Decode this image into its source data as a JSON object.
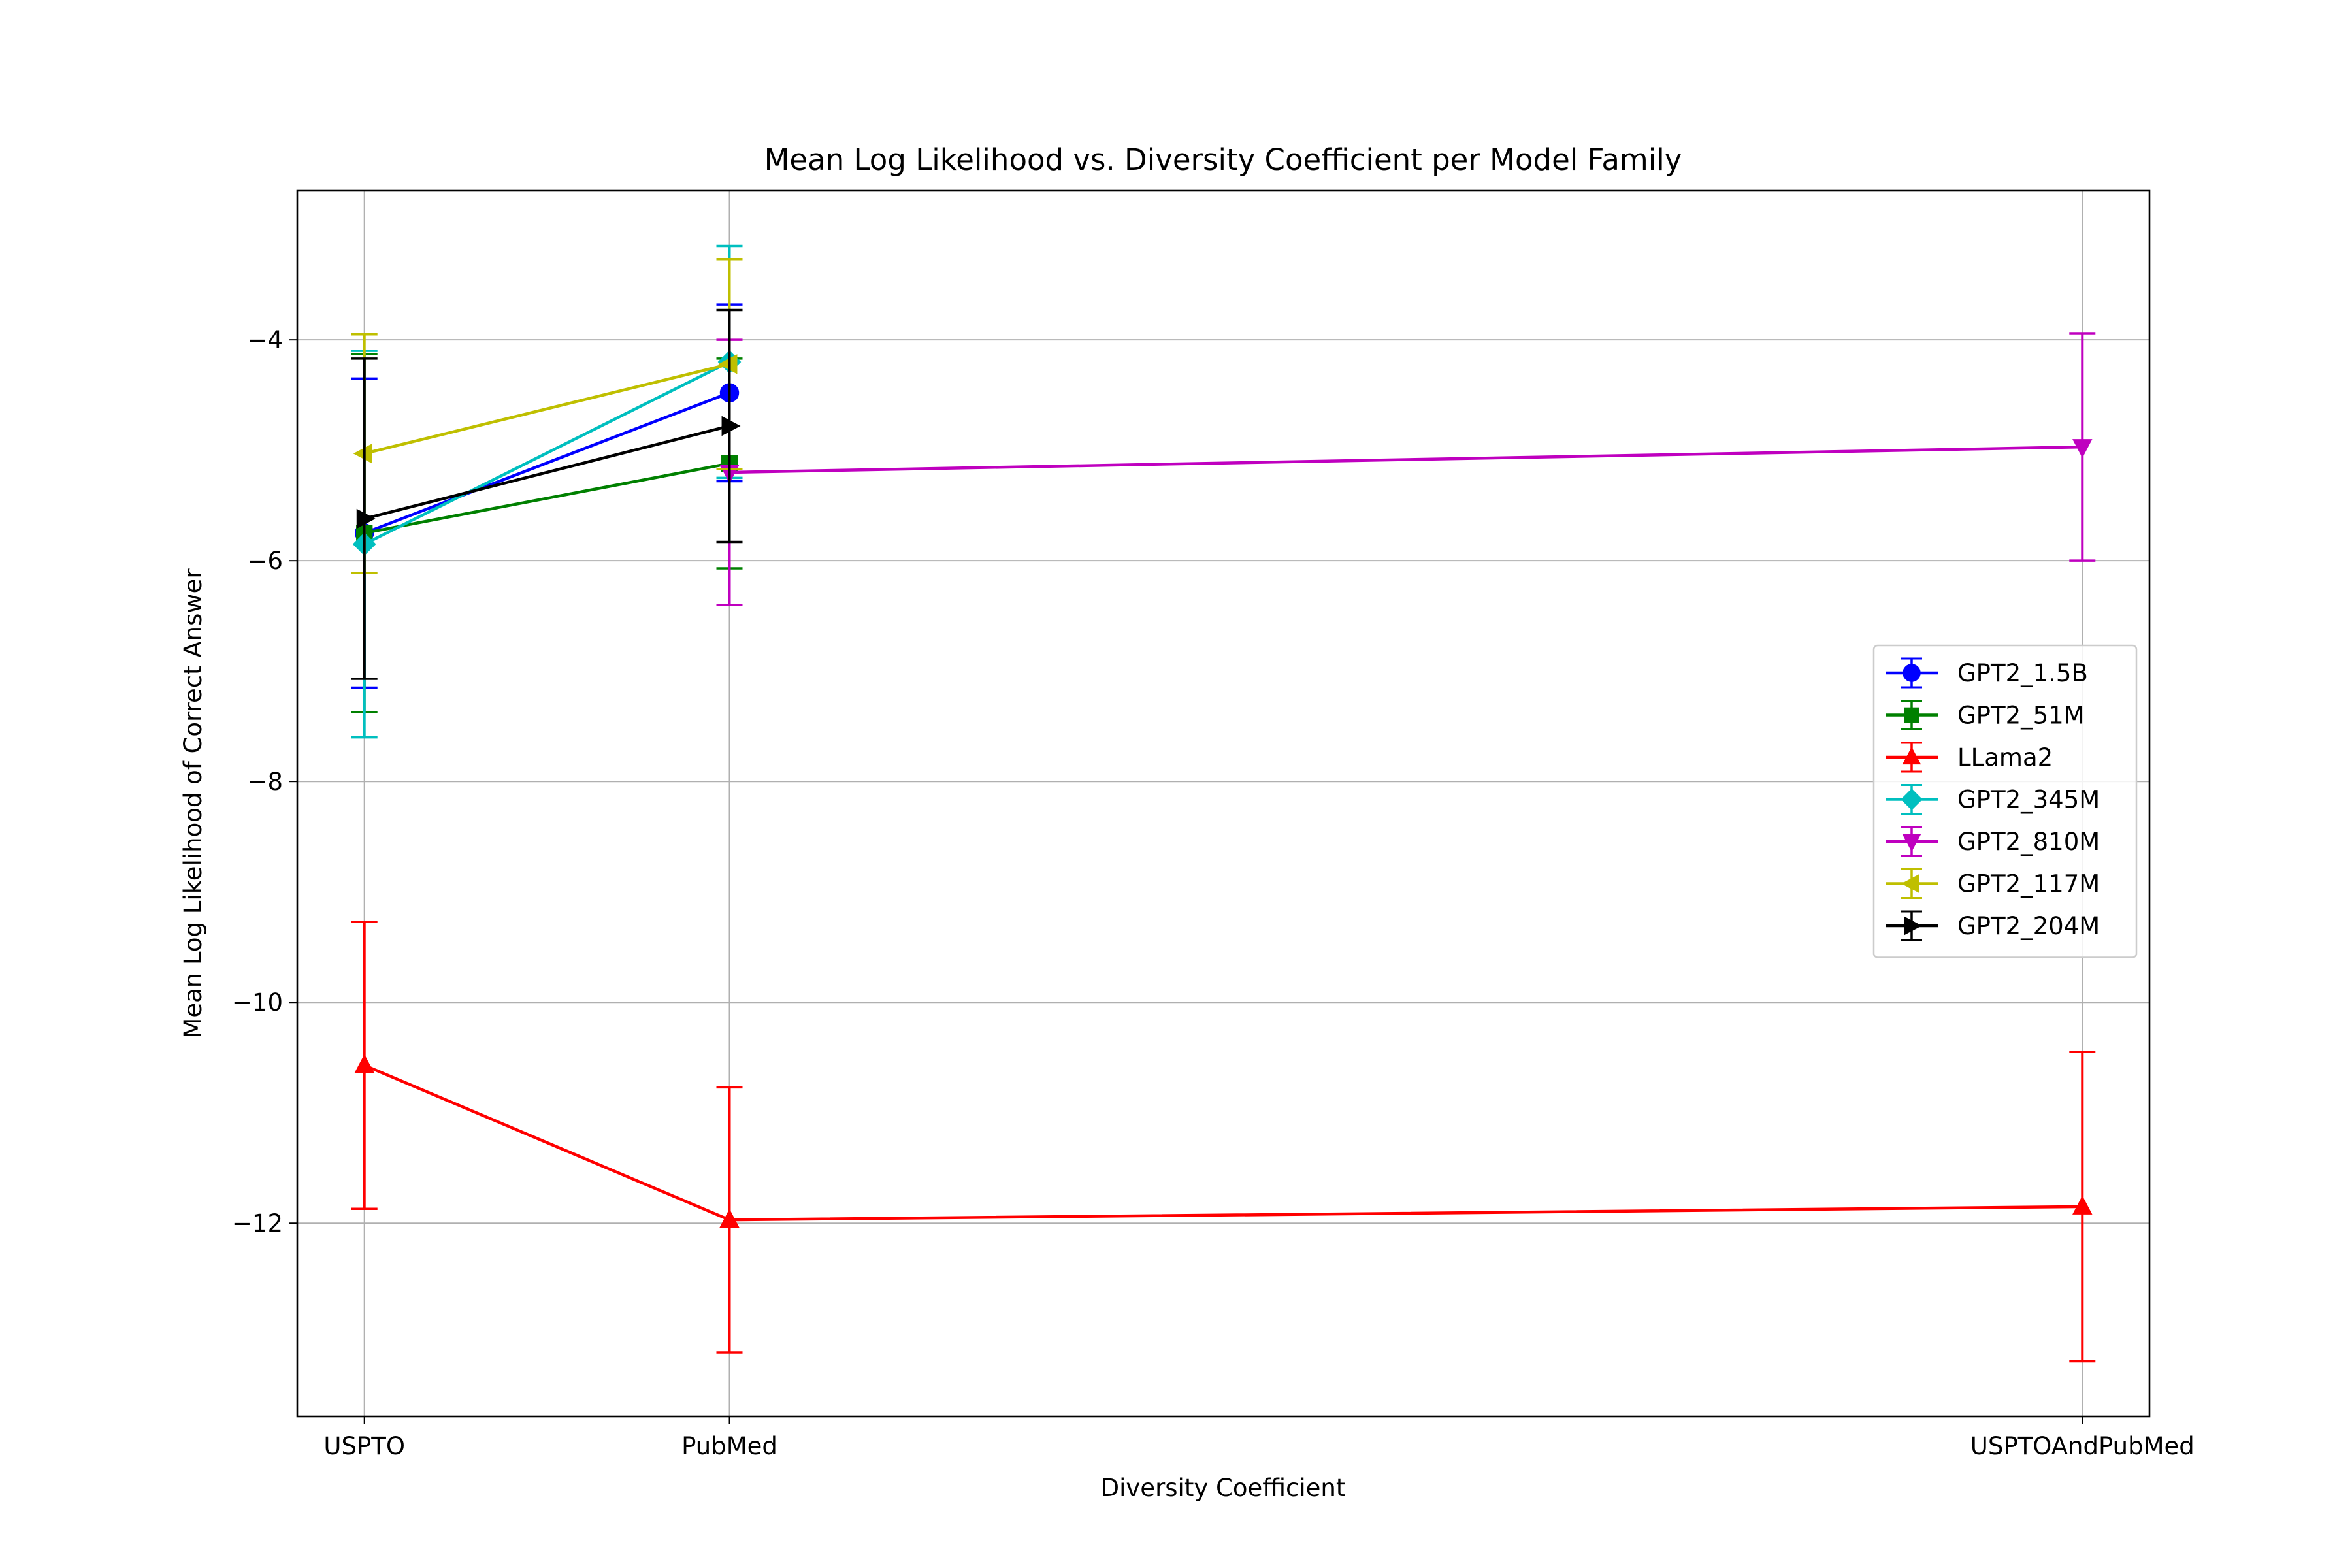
{
  "chart_data": {
    "type": "line",
    "title": "Mean Log Likelihood vs. Diversity Coefficient per Model Family",
    "xlabel": "Diversity Coefficient",
    "ylabel": "Mean Log Likelihood of Correct Answer",
    "categories": [
      "USPTO",
      "PubMed",
      "USPTOAndPubMed"
    ],
    "category_positions": [
      0.149,
      0.217,
      0.469
    ],
    "xlim": [
      0.1365,
      0.4815
    ],
    "ylim": [
      -13.75,
      -2.65
    ],
    "yticks": [
      -12,
      -10,
      -8,
      -6,
      -4
    ],
    "ytick_labels": [
      "−12",
      "−10",
      "−8",
      "−6",
      "−4"
    ],
    "grid": true,
    "legend_position": "center-right",
    "series": [
      {
        "name": "GPT2_1.5B",
        "color": "#0000ff",
        "marker": "circle",
        "points": [
          {
            "cat": 0,
            "y": -5.75,
            "err": 1.4
          },
          {
            "cat": 1,
            "y": -4.48,
            "err": 0.8
          }
        ]
      },
      {
        "name": "GPT2_51M",
        "color": "#008000",
        "marker": "square",
        "points": [
          {
            "cat": 0,
            "y": -5.75,
            "err": 1.62
          },
          {
            "cat": 1,
            "y": -5.12,
            "err": 0.95
          }
        ]
      },
      {
        "name": "LLama2",
        "color": "#ff0000",
        "marker": "triangle-up",
        "points": [
          {
            "cat": 0,
            "y": -10.57,
            "err": 1.3
          },
          {
            "cat": 1,
            "y": -11.97,
            "err": 1.2
          },
          {
            "cat": 2,
            "y": -11.85,
            "err": 1.4
          }
        ]
      },
      {
        "name": "GPT2_345M",
        "color": "#00bfbf",
        "marker": "diamond",
        "points": [
          {
            "cat": 0,
            "y": -5.85,
            "err": 1.75
          },
          {
            "cat": 1,
            "y": -4.2,
            "err": 1.05
          }
        ]
      },
      {
        "name": "GPT2_810M",
        "color": "#bf00bf",
        "marker": "triangle-down",
        "points": [
          {
            "cat": 1,
            "y": -5.2,
            "err": 1.2
          },
          {
            "cat": 2,
            "y": -4.97,
            "err": 1.03
          }
        ]
      },
      {
        "name": "GPT2_117M",
        "color": "#bfbf00",
        "marker": "triangle-left",
        "points": [
          {
            "cat": 0,
            "y": -5.03,
            "err": 1.08
          },
          {
            "cat": 1,
            "y": -4.22,
            "err": 0.95
          }
        ]
      },
      {
        "name": "GPT2_204M",
        "color": "#000000",
        "marker": "triangle-right",
        "points": [
          {
            "cat": 0,
            "y": -5.62,
            "err": 1.45
          },
          {
            "cat": 1,
            "y": -4.78,
            "err": 1.05
          }
        ]
      }
    ]
  }
}
